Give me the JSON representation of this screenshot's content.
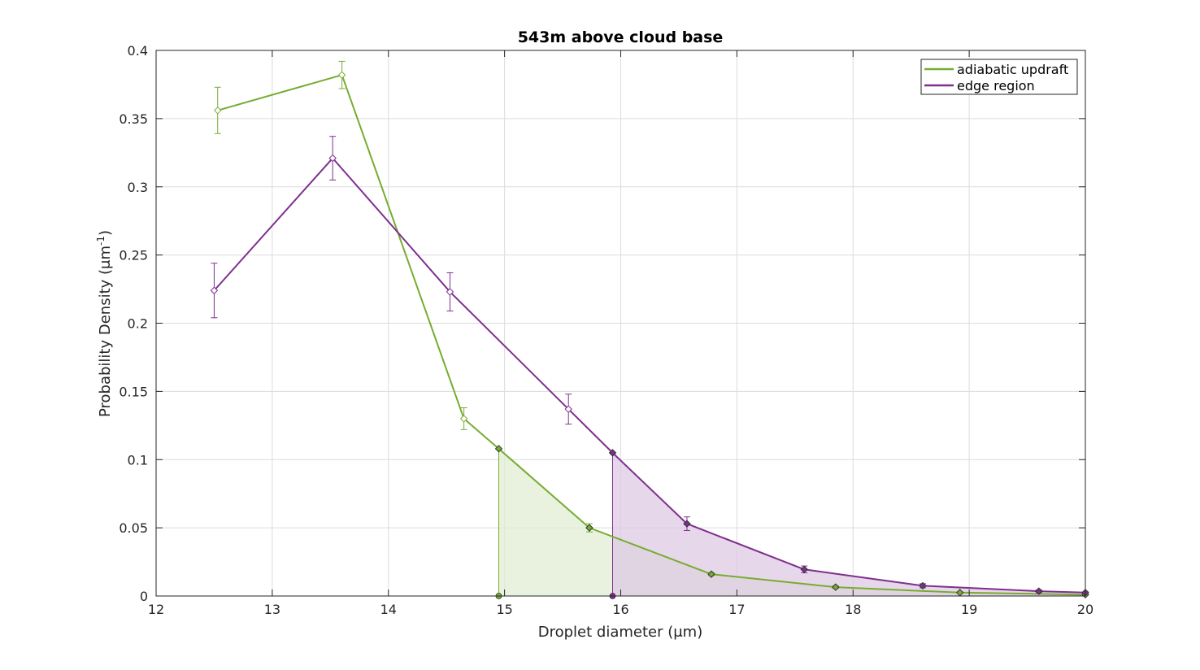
{
  "chart_data": {
    "type": "line",
    "title": "543m above cloud base",
    "xlabel": "Droplet diameter (μm)",
    "ylabel": "Probability Density (μm-1)",
    "xlim": [
      12,
      20
    ],
    "ylim": [
      0,
      0.4
    ],
    "xticks": [
      12,
      13,
      14,
      15,
      16,
      17,
      18,
      19,
      20
    ],
    "yticks": [
      0,
      0.05,
      0.1,
      0.15,
      0.2,
      0.25,
      0.3,
      0.35,
      0.4
    ],
    "xtick_labels": [
      "12",
      "13",
      "14",
      "15",
      "16",
      "17",
      "18",
      "19",
      "20"
    ],
    "ytick_labels": [
      "0",
      "0.05",
      "0.1",
      "0.15",
      "0.2",
      "0.25",
      "0.3",
      "0.35",
      "0.4"
    ],
    "grid": true,
    "legend_position": "top-right",
    "series": [
      {
        "name": "adiabatic updraft",
        "color": "#77AC30",
        "x": [
          12.53,
          13.6,
          14.65,
          14.95,
          15.73,
          16.78,
          17.85,
          18.92,
          20.0
        ],
        "y": [
          0.356,
          0.382,
          0.13,
          0.108,
          0.05,
          0.016,
          0.0065,
          0.0025,
          0.001
        ],
        "error": [
          0.017,
          0.01,
          0.008,
          0,
          0.003,
          0.001,
          0.001,
          0.0005,
          0.0003
        ],
        "filled_from_x": 14.95,
        "fill_color": "#e2edd3"
      },
      {
        "name": "edge region",
        "color": "#7E2F8E",
        "x": [
          12.5,
          13.52,
          14.53,
          15.55,
          15.93,
          16.57,
          17.58,
          18.6,
          19.6,
          20.0
        ],
        "y": [
          0.224,
          0.321,
          0.223,
          0.137,
          0.105,
          0.053,
          0.0195,
          0.0075,
          0.0035,
          0.0025
        ],
        "error": [
          0.02,
          0.016,
          0.014,
          0.011,
          0,
          0.005,
          0.0025,
          0.0015,
          0.001,
          0.0005
        ],
        "filled_from_x": 15.93,
        "fill_color": "#ddc9e3"
      }
    ]
  }
}
